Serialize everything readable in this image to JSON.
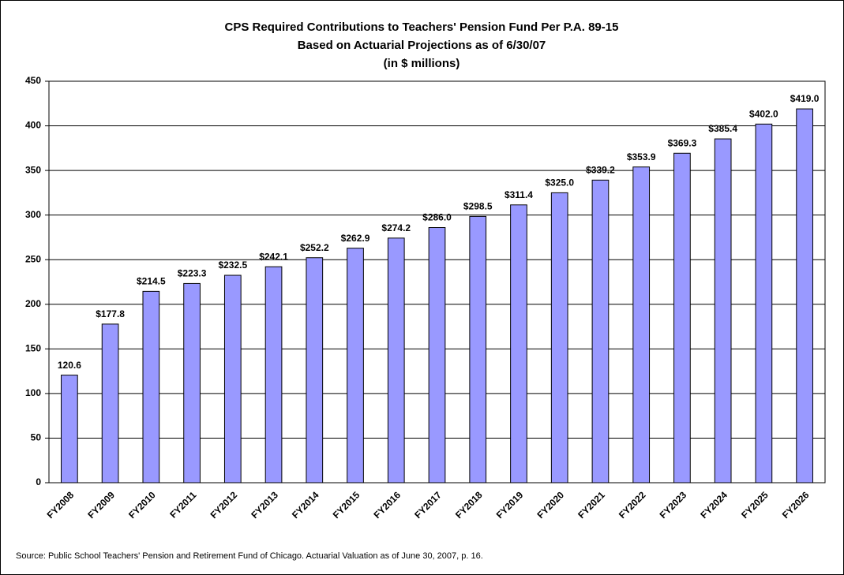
{
  "chart_data": {
    "type": "bar",
    "title": [
      "CPS Required Contributions to Teachers' Pension Fund Per P.A. 89-15",
      "Based on Actuarial Projections as of 6/30/07",
      "(in $ millions)"
    ],
    "categories": [
      "FY2008",
      "FY2009",
      "FY2010",
      "FY2011",
      "FY2012",
      "FY2013",
      "FY2014",
      "FY2015",
      "FY2016",
      "FY2017",
      "FY2018",
      "FY2019",
      "FY2020",
      "FY2021",
      "FY2022",
      "FY2023",
      "FY2024",
      "FY2025",
      "FY2026"
    ],
    "values": [
      120.6,
      177.8,
      214.5,
      223.3,
      232.5,
      242.1,
      252.2,
      262.9,
      274.2,
      286.0,
      298.5,
      311.4,
      325.0,
      339.2,
      353.9,
      369.3,
      385.4,
      402.0,
      419.0
    ],
    "value_labels": [
      "120.6",
      "$177.8",
      "$214.5",
      "$223.3",
      "$232.5",
      "$242.1",
      "$252.2",
      "$262.9",
      "$274.2",
      "$286.0",
      "$298.5",
      "$311.4",
      "$325.0",
      "$339.2",
      "$353.9",
      "$369.3",
      "$385.4",
      "$402.0",
      "$419.0"
    ],
    "color": "#9999ff",
    "ylim": [
      0,
      450
    ],
    "yticks": [
      0,
      50,
      100,
      150,
      200,
      250,
      300,
      350,
      400,
      450
    ],
    "grid": true,
    "source": "Source:  Public School Teachers' Pension and Retirement Fund of Chicago.  Actuarial Valuation as of June 30, 2007, p. 16."
  }
}
